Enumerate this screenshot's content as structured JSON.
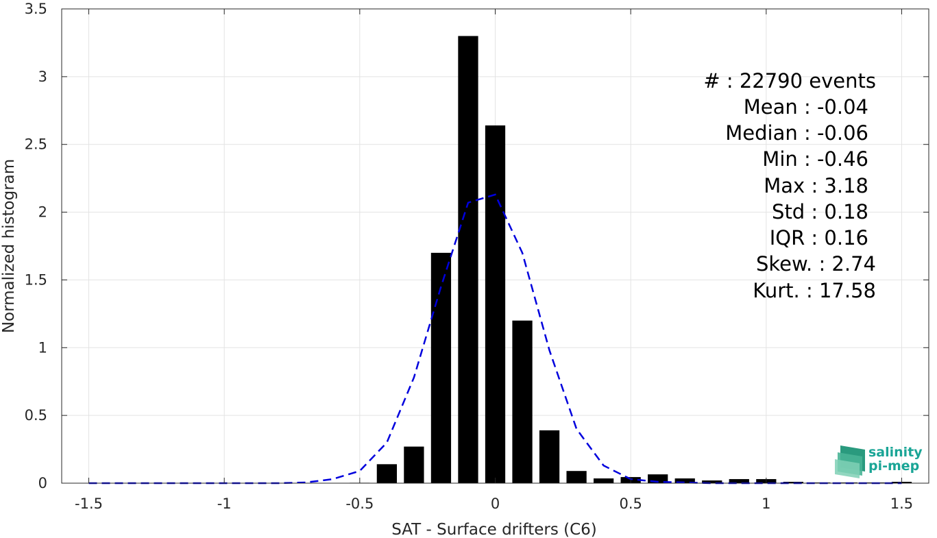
{
  "chart_data": {
    "type": "bar",
    "xlabel": "SAT - Surface drifters (C6)",
    "ylabel": "Normalized histogram",
    "xlim": [
      -1.6,
      1.6
    ],
    "ylim": [
      0,
      3.5
    ],
    "xticks": [
      -1.5,
      -1,
      -0.5,
      0,
      0.5,
      1,
      1.5
    ],
    "xtick_labels": [
      "-1.5",
      "-1",
      "-0.5",
      "0",
      "0.5",
      "1",
      "1.5"
    ],
    "yticks": [
      0,
      0.5,
      1,
      1.5,
      2,
      2.5,
      3,
      3.5
    ],
    "ytick_labels": [
      "0",
      "0.5",
      "1",
      "1.5",
      "2",
      "2.5",
      "3",
      "3.5"
    ],
    "grid": true,
    "bar_color": "#000000",
    "bars": {
      "x": [
        -1.5,
        -1.4,
        -1.3,
        -1.2,
        -1.1,
        -1.0,
        -0.9,
        -0.8,
        -0.7,
        -0.6,
        -0.5,
        -0.4,
        -0.3,
        -0.2,
        -0.1,
        0.0,
        0.1,
        0.2,
        0.3,
        0.4,
        0.5,
        0.6,
        0.7,
        0.8,
        0.9,
        1.0,
        1.1,
        1.2,
        1.3,
        1.4,
        1.5
      ],
      "values": [
        0,
        0,
        0,
        0,
        0,
        0,
        0,
        0,
        0,
        0,
        0.003,
        0.14,
        0.27,
        1.7,
        3.3,
        2.64,
        1.2,
        0.39,
        0.09,
        0.035,
        0.045,
        0.065,
        0.035,
        0.02,
        0.03,
        0.03,
        0.01,
        0.005,
        0.005,
        0.005,
        0.01
      ]
    },
    "fit_curve": {
      "color": "#0000dd",
      "style": "dashed",
      "x": [
        -1.5,
        -1.4,
        -1.3,
        -1.2,
        -1.1,
        -1.0,
        -0.9,
        -0.8,
        -0.7,
        -0.6,
        -0.5,
        -0.4,
        -0.3,
        -0.2,
        -0.1,
        0.0,
        0.1,
        0.2,
        0.3,
        0.4,
        0.5,
        0.6,
        0.7,
        0.8,
        0.9,
        1.0,
        1.1,
        1.2,
        1.3,
        1.4,
        1.5
      ],
      "values": [
        0,
        0,
        0,
        0,
        0,
        0,
        0,
        0,
        0.005,
        0.03,
        0.09,
        0.3,
        0.78,
        1.45,
        2.07,
        2.13,
        1.7,
        0.98,
        0.4,
        0.13,
        0.03,
        0.01,
        0.005,
        0,
        0,
        0,
        0,
        0,
        0,
        0,
        0
      ]
    },
    "annotations": [
      "#  : 22790 events",
      "Mean : -0.04",
      "Median : -0.06",
      "Min : -0.46",
      "Max : 3.18",
      "Std : 0.18",
      "IQR : 0.16",
      "Skew. : 2.74",
      "Kurt. : 17.58"
    ]
  },
  "logo": {
    "line1": "salinity",
    "line2": "pi-mep",
    "color": "#1aa596"
  }
}
